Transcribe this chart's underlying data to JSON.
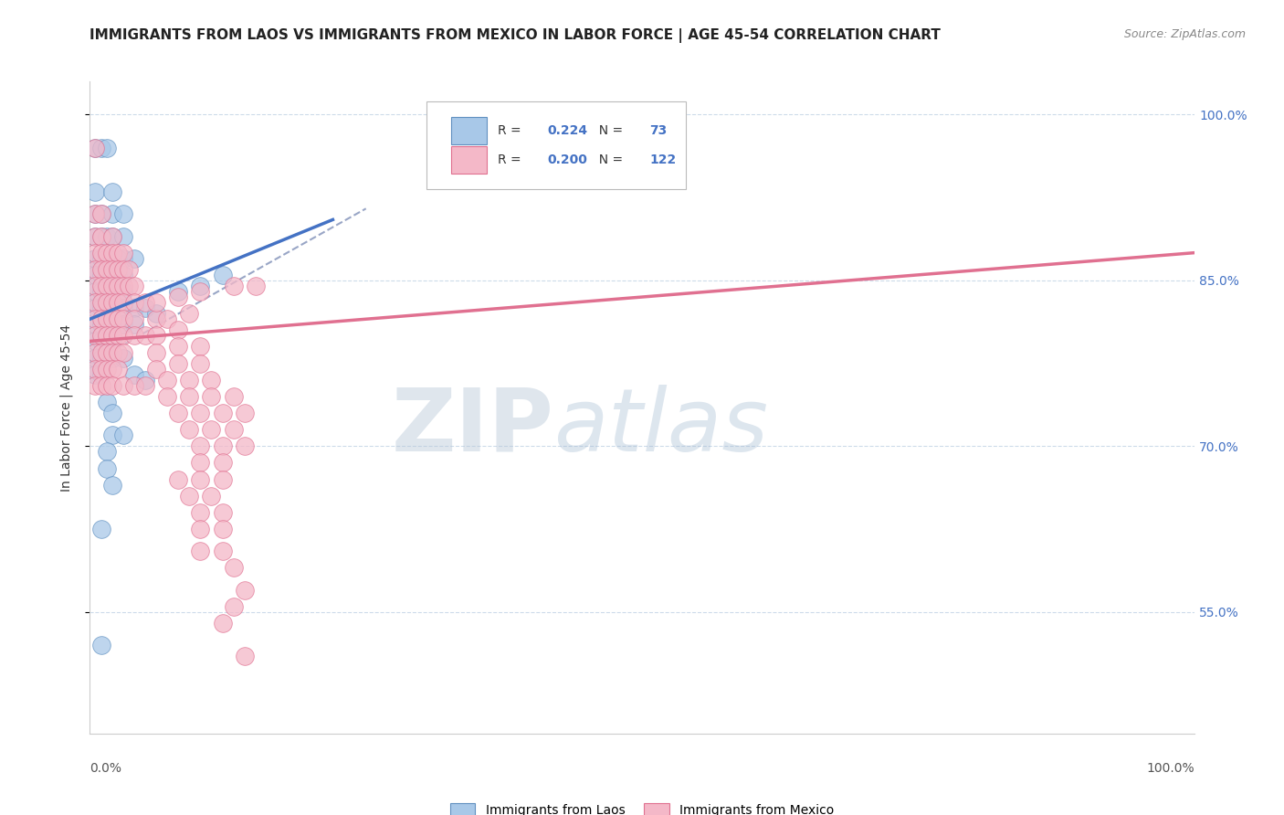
{
  "title": "IMMIGRANTS FROM LAOS VS IMMIGRANTS FROM MEXICO IN LABOR FORCE | AGE 45-54 CORRELATION CHART",
  "source": "Source: ZipAtlas.com",
  "ylabel": "In Labor Force | Age 45-54",
  "laos_R": "0.224",
  "laos_N": "73",
  "mexico_R": "0.200",
  "mexico_N": "122",
  "laos_color": "#a8c8e8",
  "mexico_color": "#f4b8c8",
  "laos_edge_color": "#6090c0",
  "mexico_edge_color": "#e07090",
  "laos_line_color": "#4472c4",
  "mexico_line_color": "#e07090",
  "trend_line_color": "#8090b8",
  "background_color": "#ffffff",
  "grid_color": "#c8d8e8",
  "xlim": [
    0.0,
    1.0
  ],
  "ylim": [
    0.44,
    1.03
  ],
  "y_tick_vals": [
    0.55,
    0.7,
    0.85,
    1.0
  ],
  "y_tick_labels": [
    "55.0%",
    "70.0%",
    "85.0%",
    "100.0%"
  ],
  "x_tick_vals": [
    0.0,
    1.0
  ],
  "x_tick_labels": [
    "0.0%",
    "100.0%"
  ],
  "laos_trend_x": [
    0.0,
    0.22
  ],
  "laos_trend_y": [
    0.815,
    0.905
  ],
  "mexico_trend_x": [
    0.0,
    1.0
  ],
  "mexico_trend_y": [
    0.795,
    0.875
  ],
  "overall_trend_x": [
    0.0,
    0.25
  ],
  "overall_trend_y": [
    0.775,
    0.915
  ],
  "watermark_zip": "ZIP",
  "watermark_atlas": "atlas",
  "title_fontsize": 11,
  "label_fontsize": 10,
  "tick_fontsize": 10,
  "laos_scatter": [
    [
      0.005,
      0.97
    ],
    [
      0.01,
      0.97
    ],
    [
      0.015,
      0.97
    ],
    [
      0.005,
      0.93
    ],
    [
      0.02,
      0.93
    ],
    [
      0.005,
      0.91
    ],
    [
      0.01,
      0.91
    ],
    [
      0.02,
      0.91
    ],
    [
      0.03,
      0.91
    ],
    [
      0.005,
      0.89
    ],
    [
      0.01,
      0.89
    ],
    [
      0.015,
      0.89
    ],
    [
      0.02,
      0.89
    ],
    [
      0.03,
      0.89
    ],
    [
      0.005,
      0.87
    ],
    [
      0.01,
      0.87
    ],
    [
      0.015,
      0.87
    ],
    [
      0.02,
      0.87
    ],
    [
      0.025,
      0.87
    ],
    [
      0.03,
      0.87
    ],
    [
      0.04,
      0.87
    ],
    [
      0.005,
      0.855
    ],
    [
      0.01,
      0.855
    ],
    [
      0.015,
      0.855
    ],
    [
      0.02,
      0.855
    ],
    [
      0.025,
      0.855
    ],
    [
      0.03,
      0.855
    ],
    [
      0.005,
      0.84
    ],
    [
      0.01,
      0.84
    ],
    [
      0.015,
      0.84
    ],
    [
      0.02,
      0.84
    ],
    [
      0.03,
      0.84
    ],
    [
      0.005,
      0.825
    ],
    [
      0.01,
      0.825
    ],
    [
      0.02,
      0.825
    ],
    [
      0.03,
      0.825
    ],
    [
      0.04,
      0.825
    ],
    [
      0.05,
      0.825
    ],
    [
      0.005,
      0.81
    ],
    [
      0.01,
      0.81
    ],
    [
      0.015,
      0.81
    ],
    [
      0.02,
      0.81
    ],
    [
      0.03,
      0.81
    ],
    [
      0.04,
      0.81
    ],
    [
      0.005,
      0.795
    ],
    [
      0.01,
      0.795
    ],
    [
      0.015,
      0.795
    ],
    [
      0.02,
      0.795
    ],
    [
      0.005,
      0.78
    ],
    [
      0.01,
      0.78
    ],
    [
      0.02,
      0.78
    ],
    [
      0.005,
      0.765
    ],
    [
      0.01,
      0.765
    ],
    [
      0.03,
      0.78
    ],
    [
      0.06,
      0.82
    ],
    [
      0.08,
      0.84
    ],
    [
      0.1,
      0.845
    ],
    [
      0.12,
      0.855
    ],
    [
      0.04,
      0.765
    ],
    [
      0.05,
      0.76
    ],
    [
      0.015,
      0.74
    ],
    [
      0.02,
      0.73
    ],
    [
      0.02,
      0.71
    ],
    [
      0.03,
      0.71
    ],
    [
      0.015,
      0.695
    ],
    [
      0.015,
      0.68
    ],
    [
      0.02,
      0.665
    ],
    [
      0.01,
      0.625
    ],
    [
      0.01,
      0.52
    ]
  ],
  "mexico_scatter": [
    [
      0.005,
      0.97
    ],
    [
      0.005,
      0.91
    ],
    [
      0.01,
      0.91
    ],
    [
      0.005,
      0.89
    ],
    [
      0.01,
      0.89
    ],
    [
      0.02,
      0.89
    ],
    [
      0.005,
      0.875
    ],
    [
      0.01,
      0.875
    ],
    [
      0.015,
      0.875
    ],
    [
      0.02,
      0.875
    ],
    [
      0.025,
      0.875
    ],
    [
      0.03,
      0.875
    ],
    [
      0.005,
      0.86
    ],
    [
      0.01,
      0.86
    ],
    [
      0.015,
      0.86
    ],
    [
      0.02,
      0.86
    ],
    [
      0.025,
      0.86
    ],
    [
      0.03,
      0.86
    ],
    [
      0.035,
      0.86
    ],
    [
      0.005,
      0.845
    ],
    [
      0.01,
      0.845
    ],
    [
      0.015,
      0.845
    ],
    [
      0.02,
      0.845
    ],
    [
      0.025,
      0.845
    ],
    [
      0.03,
      0.845
    ],
    [
      0.035,
      0.845
    ],
    [
      0.04,
      0.845
    ],
    [
      0.005,
      0.83
    ],
    [
      0.01,
      0.83
    ],
    [
      0.015,
      0.83
    ],
    [
      0.02,
      0.83
    ],
    [
      0.025,
      0.83
    ],
    [
      0.03,
      0.83
    ],
    [
      0.04,
      0.83
    ],
    [
      0.05,
      0.83
    ],
    [
      0.005,
      0.815
    ],
    [
      0.01,
      0.815
    ],
    [
      0.015,
      0.815
    ],
    [
      0.02,
      0.815
    ],
    [
      0.025,
      0.815
    ],
    [
      0.03,
      0.815
    ],
    [
      0.04,
      0.815
    ],
    [
      0.06,
      0.815
    ],
    [
      0.005,
      0.8
    ],
    [
      0.01,
      0.8
    ],
    [
      0.015,
      0.8
    ],
    [
      0.02,
      0.8
    ],
    [
      0.025,
      0.8
    ],
    [
      0.03,
      0.8
    ],
    [
      0.04,
      0.8
    ],
    [
      0.05,
      0.8
    ],
    [
      0.005,
      0.785
    ],
    [
      0.01,
      0.785
    ],
    [
      0.015,
      0.785
    ],
    [
      0.02,
      0.785
    ],
    [
      0.025,
      0.785
    ],
    [
      0.03,
      0.785
    ],
    [
      0.005,
      0.77
    ],
    [
      0.01,
      0.77
    ],
    [
      0.015,
      0.77
    ],
    [
      0.02,
      0.77
    ],
    [
      0.025,
      0.77
    ],
    [
      0.005,
      0.755
    ],
    [
      0.01,
      0.755
    ],
    [
      0.015,
      0.755
    ],
    [
      0.02,
      0.755
    ],
    [
      0.03,
      0.755
    ],
    [
      0.04,
      0.755
    ],
    [
      0.06,
      0.83
    ],
    [
      0.08,
      0.835
    ],
    [
      0.1,
      0.84
    ],
    [
      0.13,
      0.845
    ],
    [
      0.15,
      0.845
    ],
    [
      0.07,
      0.815
    ],
    [
      0.09,
      0.82
    ],
    [
      0.06,
      0.8
    ],
    [
      0.08,
      0.805
    ],
    [
      0.06,
      0.785
    ],
    [
      0.08,
      0.79
    ],
    [
      0.1,
      0.79
    ],
    [
      0.06,
      0.77
    ],
    [
      0.08,
      0.775
    ],
    [
      0.1,
      0.775
    ],
    [
      0.05,
      0.755
    ],
    [
      0.07,
      0.76
    ],
    [
      0.09,
      0.76
    ],
    [
      0.11,
      0.76
    ],
    [
      0.07,
      0.745
    ],
    [
      0.09,
      0.745
    ],
    [
      0.11,
      0.745
    ],
    [
      0.13,
      0.745
    ],
    [
      0.08,
      0.73
    ],
    [
      0.1,
      0.73
    ],
    [
      0.12,
      0.73
    ],
    [
      0.14,
      0.73
    ],
    [
      0.09,
      0.715
    ],
    [
      0.11,
      0.715
    ],
    [
      0.13,
      0.715
    ],
    [
      0.1,
      0.7
    ],
    [
      0.12,
      0.7
    ],
    [
      0.14,
      0.7
    ],
    [
      0.1,
      0.685
    ],
    [
      0.12,
      0.685
    ],
    [
      0.08,
      0.67
    ],
    [
      0.1,
      0.67
    ],
    [
      0.12,
      0.67
    ],
    [
      0.09,
      0.655
    ],
    [
      0.11,
      0.655
    ],
    [
      0.1,
      0.64
    ],
    [
      0.12,
      0.64
    ],
    [
      0.1,
      0.625
    ],
    [
      0.12,
      0.625
    ],
    [
      0.1,
      0.605
    ],
    [
      0.12,
      0.605
    ],
    [
      0.13,
      0.59
    ],
    [
      0.14,
      0.57
    ],
    [
      0.13,
      0.555
    ],
    [
      0.12,
      0.54
    ],
    [
      0.14,
      0.51
    ]
  ]
}
